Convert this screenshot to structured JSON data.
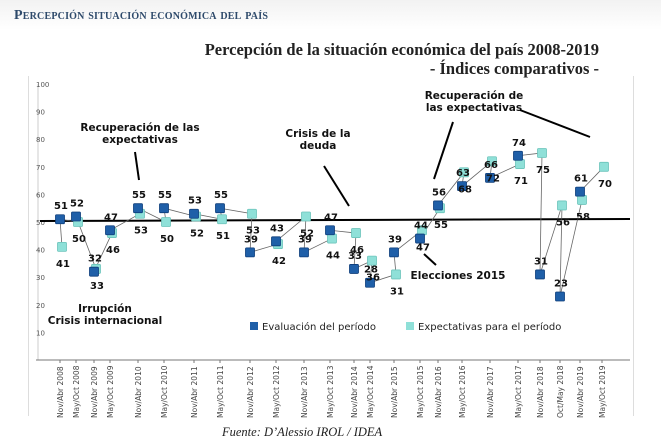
{
  "page": {
    "header": "Percepción situación económica del país",
    "footer": "Fuente: D’Alessio IROL / IDEA"
  },
  "chart_data": {
    "type": "line",
    "title": "Percepción de la situación económica del país 2008-2019",
    "subtitle": "- Índices comparativos -",
    "xlabel": "",
    "ylabel": "",
    "ylim": [
      0,
      100
    ],
    "yticks": [
      "100",
      "90",
      "80",
      "70",
      "60",
      "50",
      "40",
      "30",
      "20",
      "10"
    ],
    "grid": false,
    "legend_position": "bottom-center",
    "reference_line": 50,
    "categories": [
      "Nov/Abr 2008",
      "May/Oct 2008",
      "Nov/Abr 2009",
      "May/Oct 2009",
      "Nov/Abr 2010",
      "May/Oct 2010",
      "Nov/Abr 2011",
      "May/Oct 2011",
      "Nov/Abr 2012",
      "May/Oct 2012",
      "Nov/Abr 2013",
      "May/Oct 2013",
      "Nov/Abr 2014",
      "May/Oct 2014",
      "Nov/Abr 2015",
      "May/Oct 2015",
      "Nov/Abr 2016",
      "May/Oct 2016",
      "Nov/Abr 2017",
      "May/Oct 2017",
      "Nov/Abr 2018",
      "Oct/May 2018",
      "Nov/Abr 2019",
      "May/Oct 2019"
    ],
    "series": [
      {
        "name": "Evaluación del período",
        "color": "#1f5fa8",
        "values": [
          51,
          52,
          32,
          47,
          55,
          55,
          53,
          55,
          39,
          43,
          39,
          47,
          33,
          28,
          39,
          44,
          56,
          63,
          66,
          74,
          31,
          23,
          61,
          null
        ]
      },
      {
        "name": "Expectativas para el período",
        "color": "#8fe0d8",
        "values": [
          41,
          50,
          33,
          46,
          53,
          50,
          52,
          51,
          53,
          42,
          52,
          44,
          46,
          36,
          31,
          47,
          55,
          68,
          72,
          71,
          75,
          56,
          58,
          70
        ]
      }
    ],
    "annotations": [
      {
        "text": [
          "Recuperación de las",
          "expectativas"
        ]
      },
      {
        "text": [
          "Crisis de la",
          "deuda"
        ]
      },
      {
        "text": [
          "Recuperación de",
          "las expectativas"
        ]
      },
      {
        "text": [
          "Irrupción",
          "Crisis internacional"
        ]
      },
      {
        "text": [
          "Elecciones 2015"
        ]
      }
    ]
  }
}
